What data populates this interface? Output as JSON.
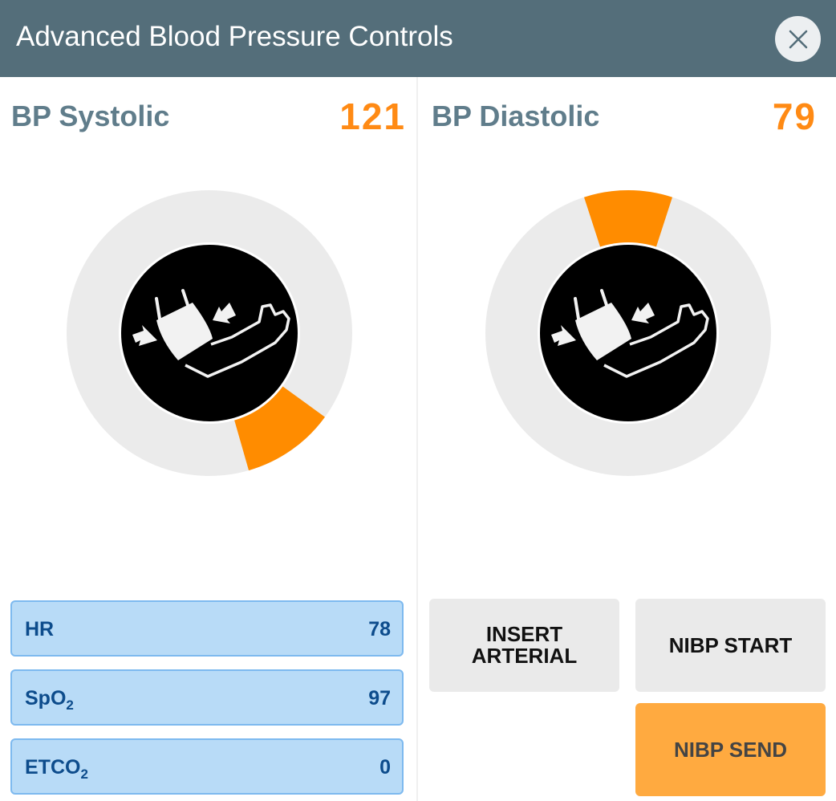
{
  "header": {
    "title": "Advanced Blood Pressure Controls",
    "close_icon": "close-icon"
  },
  "systolic": {
    "label": "BP Systolic",
    "value": "121"
  },
  "diastolic": {
    "label": "BP Diastolic",
    "value": "79"
  },
  "vitals": [
    {
      "label": "HR",
      "sub": "",
      "value": "78"
    },
    {
      "label": "SpO",
      "sub": "2",
      "value": "97"
    },
    {
      "label": "ETCO",
      "sub": "2",
      "value": "0"
    }
  ],
  "buttons": {
    "insert_arterial": [
      "INSERT",
      "ARTERIAL"
    ],
    "nibp_start": "NIBP START",
    "nibp_send": "NIBP SEND"
  },
  "colors": {
    "header": "#546e7a",
    "accent": "#ff8c00",
    "value": "#ff8a14",
    "vital_bg": "#b8dbf7",
    "send_button": "#ffaa40"
  }
}
